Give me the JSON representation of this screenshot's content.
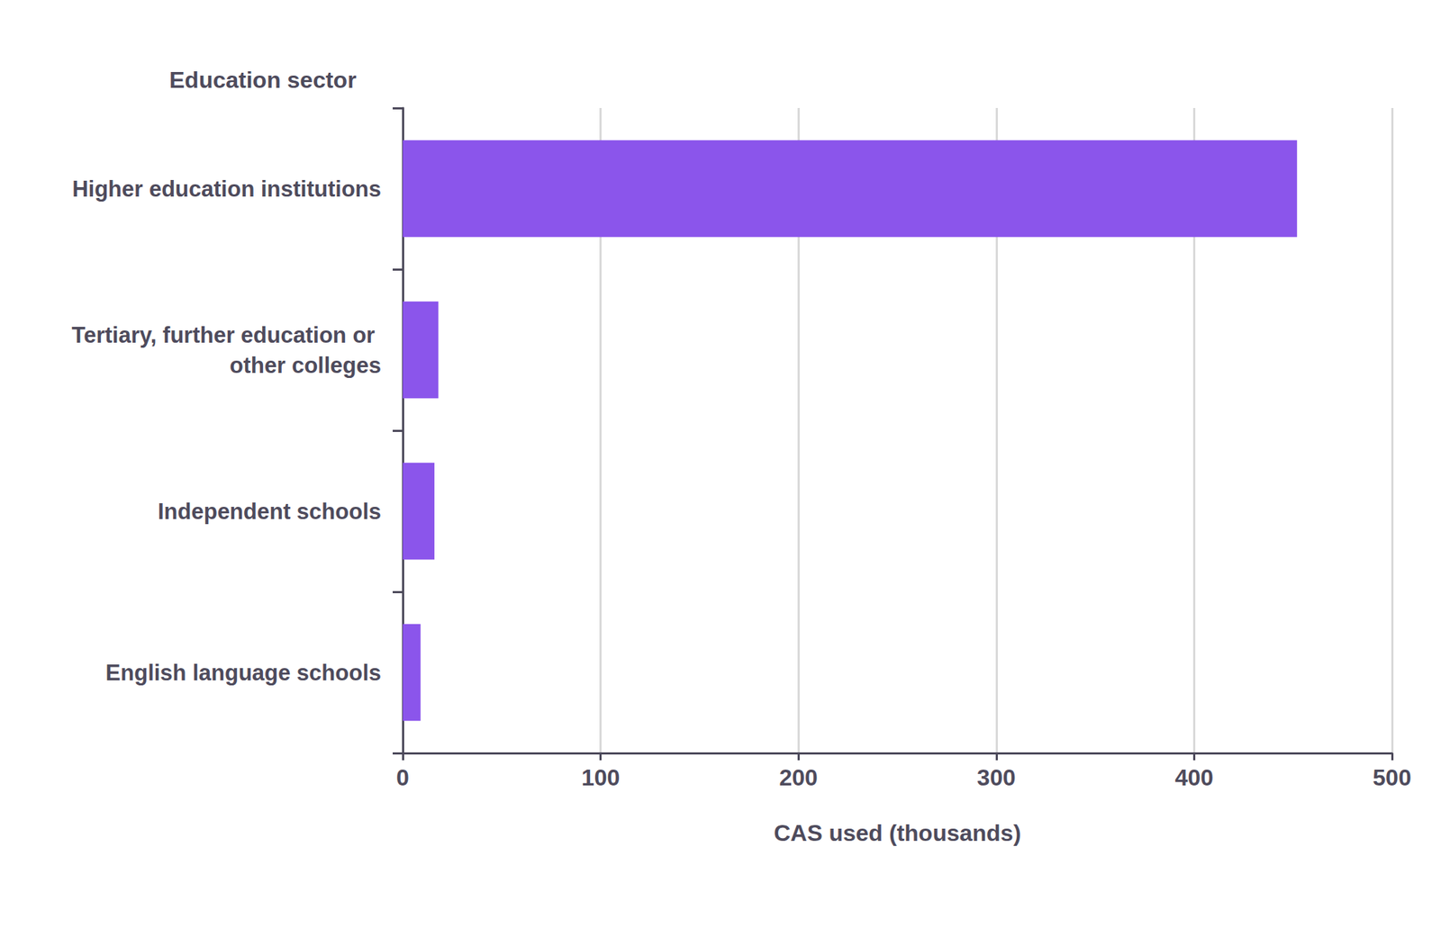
{
  "chart_data": {
    "type": "bar",
    "orientation": "horizontal",
    "ylabel": "Education sector",
    "xlabel": "CAS used (thousands)",
    "categories": [
      "Higher education institutions",
      "Tertiary, further education or other colleges",
      "Independent schools",
      "English language schools"
    ],
    "values": [
      452,
      18,
      16,
      9
    ],
    "color": "#8b55eb",
    "xlim": [
      0,
      500
    ],
    "xticks": [
      0,
      100,
      200,
      300,
      400,
      500
    ],
    "grid": true
  }
}
